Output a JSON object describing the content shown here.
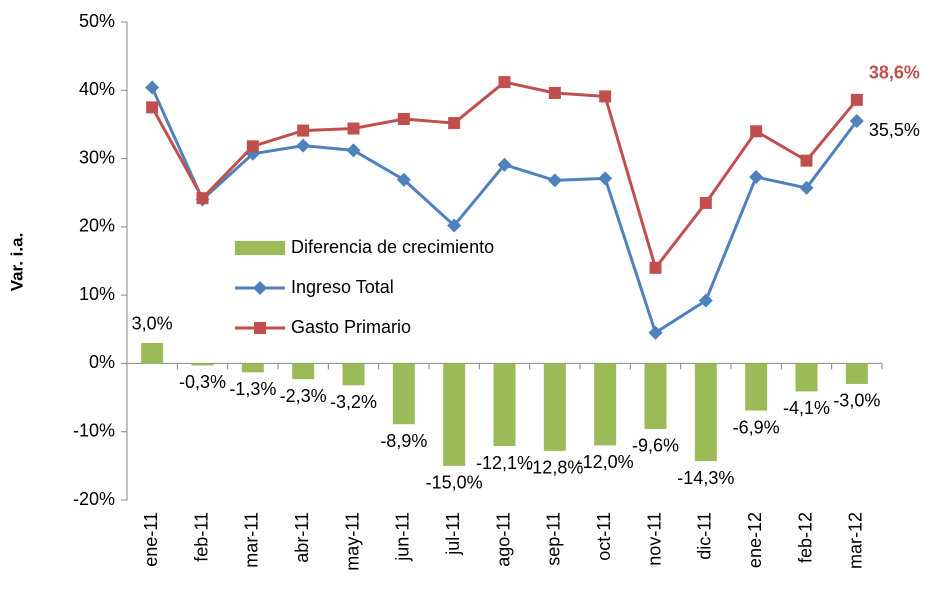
{
  "chart_data": {
    "type": "bar-line",
    "y_label": "Var. i.a.",
    "categories": [
      "ene-11",
      "feb-11",
      "mar-11",
      "abr-11",
      "may-11",
      "jun-11",
      "jul-11",
      "ago-11",
      "sep-11",
      "oct-11",
      "nov-11",
      "dic-11",
      "ene-12",
      "feb-12",
      "mar-12"
    ],
    "series": [
      {
        "name": "Diferencia de crecimiento",
        "type": "bar",
        "color": "#9bbb59",
        "values": [
          3.0,
          -0.3,
          -1.3,
          -2.3,
          -3.2,
          -8.9,
          -15.0,
          -12.1,
          -12.8,
          -12.0,
          -9.6,
          -14.3,
          -6.9,
          -4.1,
          -3.0
        ],
        "value_labels": [
          "3,0%",
          "-0,3%",
          "-1,3%",
          "-2,3%",
          "-3,2%",
          "-8,9%",
          "-15,0%",
          "-12,1%",
          "-12,8%",
          "-12,0%",
          "-9,6%",
          "-14,3%",
          "-6,9%",
          "-4,1%",
          "-3,0%"
        ]
      },
      {
        "name": "Ingreso Total",
        "type": "line",
        "marker": "diamond",
        "color": "#4f81bd",
        "values": [
          40.4,
          24.0,
          30.7,
          31.9,
          31.2,
          26.9,
          20.2,
          29.1,
          26.8,
          27.1,
          4.5,
          9.2,
          27.3,
          25.7,
          35.5
        ],
        "value_labels": [
          null,
          null,
          null,
          null,
          null,
          null,
          null,
          null,
          null,
          null,
          null,
          null,
          null,
          null,
          "35,5%"
        ]
      },
      {
        "name": "Gasto  Primario",
        "type": "line",
        "marker": "square",
        "color": "#c0504d",
        "values": [
          37.5,
          24.2,
          31.8,
          34.1,
          34.4,
          35.8,
          35.2,
          41.2,
          39.6,
          39.1,
          14.0,
          23.5,
          34.0,
          29.7,
          38.6
        ],
        "value_labels": [
          null,
          null,
          null,
          null,
          null,
          null,
          null,
          null,
          null,
          null,
          null,
          null,
          null,
          null,
          "38,6%"
        ]
      }
    ],
    "ylim": [
      -20,
      50
    ],
    "yticks": [
      {
        "value": -20,
        "label": "-20%"
      },
      {
        "value": -10,
        "label": "-10%"
      },
      {
        "value": 0,
        "label": "0%"
      },
      {
        "value": 10,
        "label": "10%"
      },
      {
        "value": 20,
        "label": "20%"
      },
      {
        "value": 30,
        "label": "30%"
      },
      {
        "value": 40,
        "label": "40%"
      },
      {
        "value": 50,
        "label": "50%"
      }
    ],
    "grid": false
  }
}
